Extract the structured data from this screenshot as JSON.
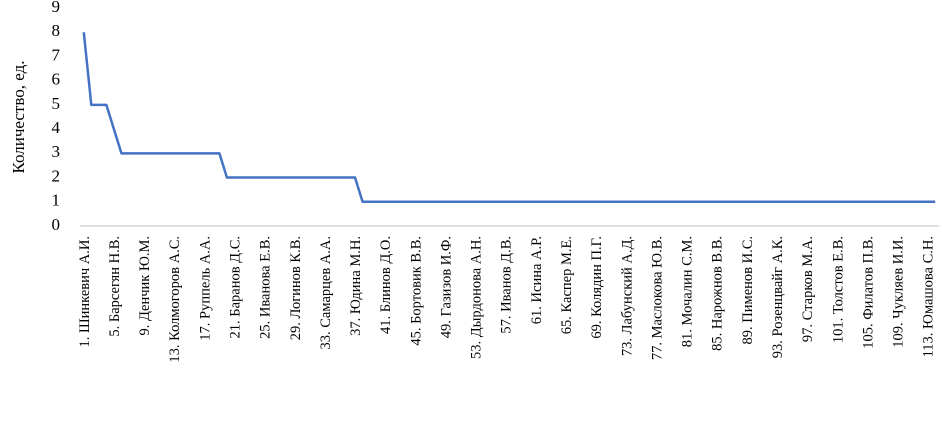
{
  "chart_data": {
    "type": "line",
    "y_label": "Количество, ед.",
    "categories": [
      "1. Шинкевич А.И.",
      null,
      null,
      null,
      "5. Барсегян Н.В.",
      null,
      null,
      null,
      "9. Денчик Ю.М.",
      null,
      null,
      null,
      "13. Колмогоров А.С.",
      null,
      null,
      null,
      "17. Руппель А.А.",
      null,
      null,
      null,
      "21. Баранов Д.С.",
      null,
      null,
      null,
      "25. Иванова Е.В.",
      null,
      null,
      null,
      "29. Логинов К.В.",
      null,
      null,
      null,
      "33. Самарцев А.А.",
      null,
      null,
      null,
      "37. Юдина М.Н.",
      null,
      null,
      null,
      "41. Блинов Д.О.",
      null,
      null,
      null,
      "45. Бортовик В.В.",
      null,
      null,
      null,
      "49. Газизов И.Ф.",
      null,
      null,
      null,
      "53. Дырдонова А.Н.",
      null,
      null,
      null,
      "57. Иванов Д.В.",
      null,
      null,
      null,
      "61. Исина А.Р.",
      null,
      null,
      null,
      "65. Каспер М.Е.",
      null,
      null,
      null,
      "69. Колядин П.Г.",
      null,
      null,
      null,
      "73. Лабунский А.Д.",
      null,
      null,
      null,
      "77. Маслокова Ю.В.",
      null,
      null,
      null,
      "81. Мочалин С.М.",
      null,
      null,
      null,
      "85. Нарожнов В.В.",
      null,
      null,
      null,
      "89. Пименов И.С.",
      null,
      null,
      null,
      "93. Розенцвайг А.К.",
      null,
      null,
      null,
      "97. Старков М.А.",
      null,
      null,
      null,
      "101. Толстов Е.В.",
      null,
      null,
      null,
      "105. Филатов П.В.",
      null,
      null,
      null,
      "109. Чукляев И.И.",
      null,
      null,
      null,
      "113. Юмашова С.Н.",
      null
    ],
    "values": [
      8,
      5,
      5,
      5,
      4,
      3,
      3,
      3,
      3,
      3,
      3,
      3,
      3,
      3,
      3,
      3,
      3,
      3,
      3,
      2,
      2,
      2,
      2,
      2,
      2,
      2,
      2,
      2,
      2,
      2,
      2,
      2,
      2,
      2,
      2,
      2,
      2,
      1,
      1,
      1,
      1,
      1,
      1,
      1,
      1,
      1,
      1,
      1,
      1,
      1,
      1,
      1,
      1,
      1,
      1,
      1,
      1,
      1,
      1,
      1,
      1,
      1,
      1,
      1,
      1,
      1,
      1,
      1,
      1,
      1,
      1,
      1,
      1,
      1,
      1,
      1,
      1,
      1,
      1,
      1,
      1,
      1,
      1,
      1,
      1,
      1,
      1,
      1,
      1,
      1,
      1,
      1,
      1,
      1,
      1,
      1,
      1,
      1,
      1,
      1,
      1,
      1,
      1,
      1,
      1,
      1,
      1,
      1,
      1,
      1,
      1,
      1,
      1,
      1
    ],
    "color": "#4472c4",
    "ylim": [
      0,
      9
    ],
    "yticks": [
      0,
      1,
      2,
      3,
      4,
      5,
      6,
      7,
      8,
      9
    ],
    "grid": false
  }
}
